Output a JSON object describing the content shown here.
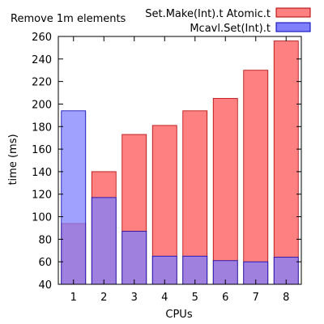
{
  "chart_data": {
    "type": "bar",
    "title": "Remove 1m elements",
    "xlabel": "CPUs",
    "ylabel": "time (ms)",
    "ylim": [
      40,
      260
    ],
    "yticks": [
      40,
      60,
      80,
      100,
      120,
      140,
      160,
      180,
      200,
      220,
      240,
      260
    ],
    "categories": [
      "1",
      "2",
      "3",
      "4",
      "5",
      "6",
      "7",
      "8"
    ],
    "grid": false,
    "legend_position": "top-right",
    "overlay_order": [
      "Set.Make(Int).t Atomic.t",
      "Mcavl.Set(Int).t"
    ],
    "series": [
      {
        "name": "Set.Make(Int).t Atomic.t",
        "color": "#ff8080",
        "edge": "#b00000",
        "values": [
          94,
          140,
          173,
          181,
          194,
          205,
          230,
          256
        ]
      },
      {
        "name": "Mcavl.Set(Int).t",
        "color": "#8080ff",
        "overlap_color": "#8040c8",
        "edge": "#0000b0",
        "values": [
          194,
          117,
          87,
          65,
          65,
          61,
          60,
          64
        ]
      }
    ]
  }
}
